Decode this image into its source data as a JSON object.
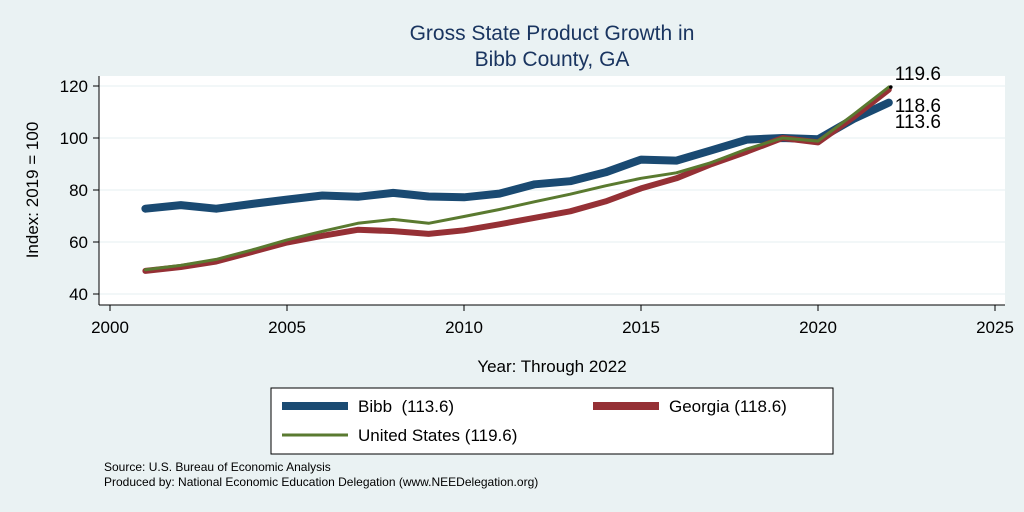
{
  "chart_data": {
    "type": "line",
    "title_lines": [
      "Gross State Product Growth in",
      "Bibb County, GA"
    ],
    "xlabel": "Year: Through 2022",
    "ylabel": "Index: 2019 = 100",
    "xlim": [
      2000,
      2025
    ],
    "ylim": [
      40,
      120
    ],
    "xticks": [
      2000,
      2005,
      2010,
      2015,
      2020,
      2025
    ],
    "yticks": [
      40,
      60,
      80,
      100,
      120
    ],
    "x": [
      2001,
      2002,
      2003,
      2004,
      2005,
      2006,
      2007,
      2008,
      2009,
      2010,
      2011,
      2012,
      2013,
      2014,
      2015,
      2016,
      2017,
      2018,
      2019,
      2020,
      2021,
      2022
    ],
    "series": [
      {
        "name": "Bibb  (113.6)",
        "color": "#1a4a72",
        "end_label": "113.6",
        "values": [
          72.8,
          74.2,
          72.8,
          74.6,
          76.3,
          77.9,
          77.4,
          78.9,
          77.5,
          77.2,
          78.6,
          82.2,
          83.4,
          86.8,
          91.7,
          91.3,
          95.3,
          99.4,
          100,
          99.5,
          107.3,
          113.6
        ]
      },
      {
        "name": "Georgia (118.6)",
        "color": "#953035",
        "end_label": "118.6",
        "values": [
          48.9,
          50.4,
          52.5,
          56.1,
          59.8,
          62.4,
          64.7,
          64.2,
          63.1,
          64.5,
          66.8,
          69.3,
          71.8,
          75.6,
          80.6,
          84.5,
          90.0,
          94.8,
          100,
          98.3,
          108.0,
          118.6
        ]
      },
      {
        "name": "United States (119.6)",
        "color": "#5a7a30",
        "end_label": "119.6",
        "values": [
          49.3,
          51.0,
          53.3,
          56.9,
          60.8,
          64.1,
          67.2,
          68.7,
          67.2,
          69.8,
          72.5,
          75.5,
          78.4,
          81.6,
          84.5,
          86.6,
          90.6,
          95.8,
          100,
          98.8,
          109.0,
          119.6
        ]
      }
    ],
    "legend_position": "bottom"
  },
  "source_note": "Source: U.S. Bureau of Economic Analysis",
  "producer_note": "Produced by: National Economic Education Delegation (www.NEEDelegation.org)"
}
